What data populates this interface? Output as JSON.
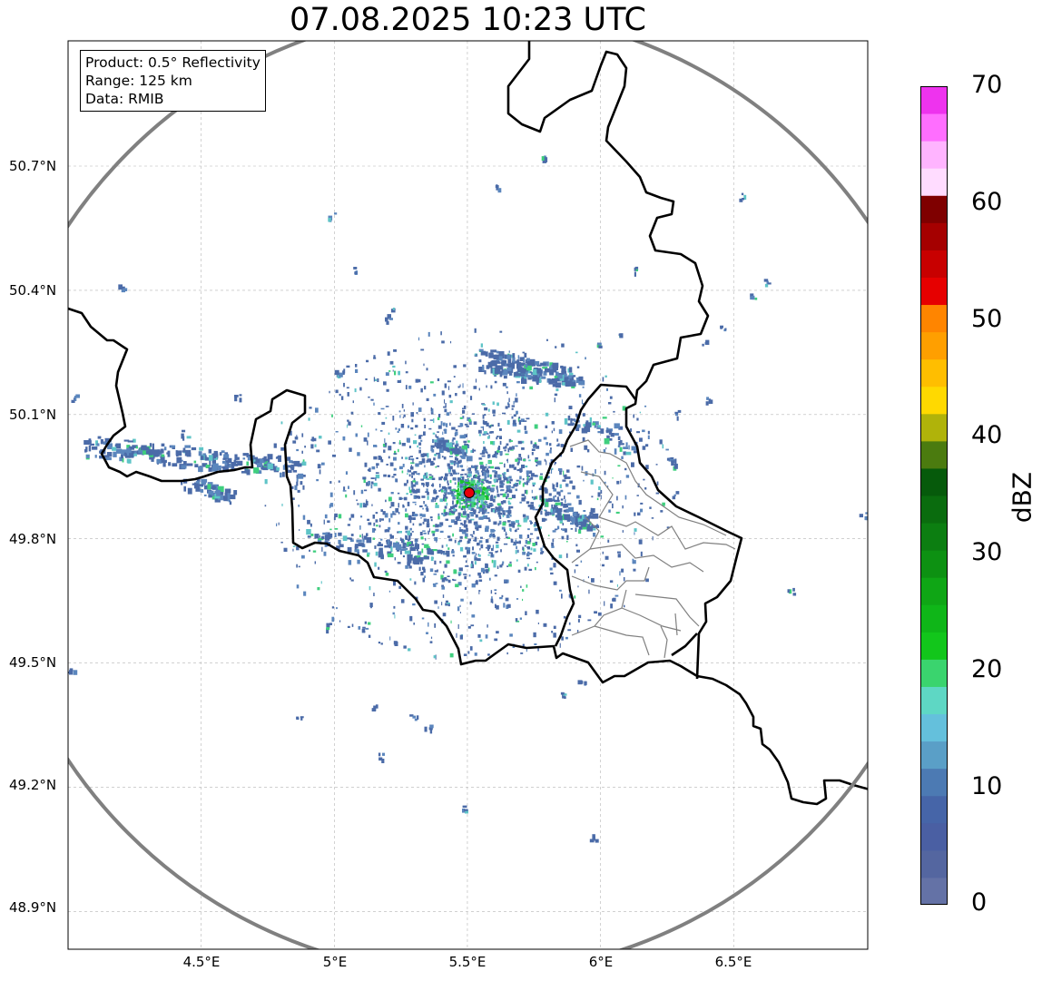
{
  "title": "07.08.2025 10:23 UTC",
  "info": {
    "product": "Product: 0.5° Reflectivity",
    "range": "Range: 125 km",
    "source": "Data: RMIB"
  },
  "axes": {
    "lat_ticks": [
      "50.7°N",
      "50.4°N",
      "50.1°N",
      "49.8°N",
      "49.5°N",
      "49.2°N",
      "48.9°N"
    ],
    "lon_ticks": [
      "4.5°E",
      "5°E",
      "5.5°E",
      "6°E",
      "6.5°E"
    ],
    "lat_values": [
      50.7,
      50.4,
      50.1,
      49.8,
      49.5,
      49.2,
      48.9
    ],
    "lon_values": [
      4.5,
      5.0,
      5.5,
      6.0,
      6.5
    ],
    "lon_range": [
      4.0,
      7.0
    ],
    "lat_range": [
      48.8,
      50.99
    ],
    "grid": true
  },
  "radar": {
    "site_lon": 5.505,
    "site_lat": 49.914,
    "range_km": 125,
    "site_color": "#e8000b",
    "range_ring_color": "#808080"
  },
  "colorbar": {
    "label": "dBZ",
    "min": 0,
    "max": 70,
    "step": 2.5,
    "tick_labels": [
      "0",
      "10",
      "20",
      "30",
      "40",
      "50",
      "60",
      "70"
    ],
    "colors": [
      "#6472a6",
      "#5466a0",
      "#4a5fa3",
      "#4665a8",
      "#4c7ab3",
      "#5a9fc7",
      "#64c0dc",
      "#5ed7c4",
      "#3ad46e",
      "#12c61b",
      "#0fb618",
      "#0fa615",
      "#0d9112",
      "#0c7e11",
      "#0a6c0e",
      "#065a0b",
      "#4b7b0f",
      "#b0b30a",
      "#ffd900",
      "#ffbe00",
      "#ff9f00",
      "#ff8500",
      "#e60000",
      "#c80000",
      "#a50000",
      "#7f0000",
      "#ffdcff",
      "#ffb4ff",
      "#ff6eff",
      "#ee33ee"
    ]
  },
  "echo_colors": [
    "#4b6ba8",
    "#5b86bd",
    "#5fc4c7",
    "#3fcf7e",
    "#16c42d"
  ]
}
